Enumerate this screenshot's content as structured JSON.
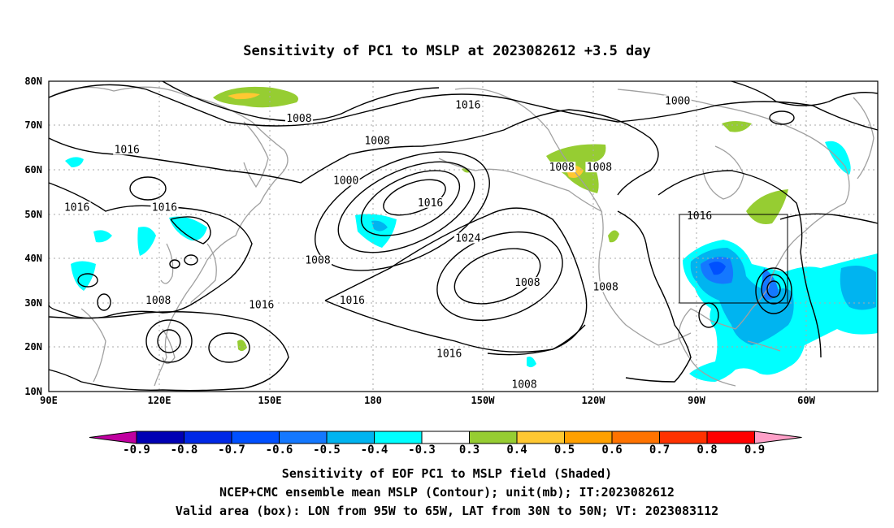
{
  "title": "Sensitivity of PC1 to MSLP at 2023082612 +3.5 day",
  "map": {
    "lat_labels": [
      "80N",
      "70N",
      "60N",
      "50N",
      "40N",
      "30N",
      "20N",
      "10N"
    ],
    "lon_labels": [
      "90E",
      "120E",
      "150E",
      "180",
      "150W",
      "120W",
      "90W",
      "60W"
    ],
    "valid_box": {
      "lon_from": "95W",
      "lon_to": "65W",
      "lat_from": "30N",
      "lat_to": "50N"
    },
    "contour_labels": [
      {
        "text": "1008",
        "lon": 170,
        "lat": 71
      },
      {
        "text": "1016",
        "lon": 224,
        "lat": 74
      },
      {
        "text": "1000",
        "lon": 291,
        "lat": 75
      },
      {
        "text": "1016",
        "lon": 115,
        "lat": 64
      },
      {
        "text": "1008",
        "lon": 195,
        "lat": 66
      },
      {
        "text": "1000",
        "lon": 185,
        "lat": 57
      },
      {
        "text": "1008",
        "lon": 254,
        "lat": 60
      },
      {
        "text": "1008",
        "lon": 266,
        "lat": 60
      },
      {
        "text": "1016",
        "lon": 99,
        "lat": 51
      },
      {
        "text": "1016",
        "lon": 127,
        "lat": 51
      },
      {
        "text": "1016",
        "lon": 212,
        "lat": 52
      },
      {
        "text": "1016",
        "lon": 298,
        "lat": 49
      },
      {
        "text": "1024",
        "lon": 224,
        "lat": 44
      },
      {
        "text": "1008",
        "lon": 176,
        "lat": 39
      },
      {
        "text": "1008",
        "lon": 243,
        "lat": 34
      },
      {
        "text": "1008",
        "lon": 268,
        "lat": 33
      },
      {
        "text": "1008",
        "lon": 125,
        "lat": 30
      },
      {
        "text": "1016",
        "lon": 158,
        "lat": 29
      },
      {
        "text": "1016",
        "lon": 187,
        "lat": 30
      },
      {
        "text": "1016",
        "lon": 218,
        "lat": 18
      },
      {
        "text": "1008",
        "lon": 242,
        "lat": 11
      }
    ]
  },
  "colorbar": {
    "ticks": [
      "-0.9",
      "-0.8",
      "-0.7",
      "-0.6",
      "-0.5",
      "-0.4",
      "-0.3",
      "0.3",
      "0.4",
      "0.5",
      "0.6",
      "0.7",
      "0.8",
      "0.9"
    ],
    "colors": [
      "#c000a0",
      "#0000b4",
      "#0028e6",
      "#0050ff",
      "#1478ff",
      "#00b4f0",
      "#00ffff",
      "#ffffff",
      "#96cd32",
      "#ffc832",
      "#ffa000",
      "#ff7300",
      "#ff3200",
      "#ff0000",
      "#ffa0c8"
    ]
  },
  "caption": [
    "Sensitivity of EOF PC1 to MSLP field (Shaded)",
    "NCEP+CMC ensemble mean MSLP (Contour); unit(mb); IT:2023082612",
    "Valid area (box): LON from 95W to 65W, LAT from 30N to 50N; VT: 2023083112"
  ]
}
